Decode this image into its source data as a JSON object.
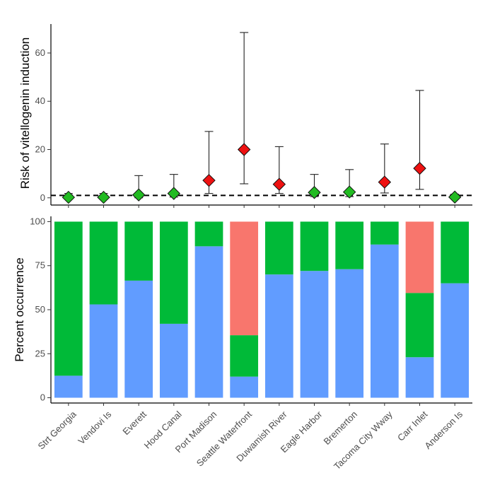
{
  "chart_data": [
    {
      "type": "scatter",
      "title": "",
      "xlabel": "",
      "ylabel": "Risk of vitellogenin induction",
      "ylim": [
        -3,
        72
      ],
      "yticks": [
        0,
        20,
        40,
        60
      ],
      "reference_line": 1,
      "categories": [
        "Strt Georgia",
        "Vendovi Is",
        "Everett",
        "Hood Canal",
        "Port Madison",
        "Seattle Waterfront",
        "Duwamish River",
        "Eagle Harbor",
        "Bremerton",
        "Tacoma City Wway",
        "Carr Inlet",
        "Anderson Is"
      ],
      "values": [
        0.2,
        0.2,
        1.2,
        1.8,
        7.2,
        20.0,
        5.6,
        2.2,
        2.4,
        6.5,
        12.2,
        0.3
      ],
      "lower": [
        0.0,
        0.0,
        0.0,
        0.3,
        1.8,
        5.8,
        1.8,
        0.5,
        0.5,
        2.0,
        3.5,
        0.0
      ],
      "upper": [
        1.8,
        1.8,
        9.2,
        9.7,
        27.5,
        68.5,
        21.2,
        9.7,
        11.7,
        22.3,
        44.5,
        1.5
      ],
      "marker_colors": [
        "#22bb22",
        "#22bb22",
        "#22bb22",
        "#22bb22",
        "#ee1111",
        "#ee1111",
        "#ee1111",
        "#22bb22",
        "#22bb22",
        "#ee1111",
        "#ee1111",
        "#22bb22"
      ]
    },
    {
      "type": "bar",
      "stacked": true,
      "title": "",
      "xlabel": "",
      "ylabel": "Percent occurrence",
      "ylim": [
        -3,
        103
      ],
      "yticks": [
        0,
        25,
        50,
        75,
        100
      ],
      "categories": [
        "Strt Georgia",
        "Vendovi Is",
        "Everett",
        "Hood Canal",
        "Port Madison",
        "Seattle Waterfront",
        "Duwamish River",
        "Eagle Harbor",
        "Bremerton",
        "Tacoma City Wway",
        "Carr Inlet",
        "Anderson Is"
      ],
      "series": [
        {
          "color": "#619cff",
          "values": [
            12.5,
            53,
            66.5,
            42,
            86,
            12,
            70,
            72,
            73,
            87,
            23,
            65
          ]
        },
        {
          "color": "#00ba38",
          "values": [
            87.5,
            47,
            33.5,
            58,
            14,
            23.5,
            30,
            28,
            27,
            13,
            36.5,
            35
          ]
        },
        {
          "color": "#f8766d",
          "values": [
            0,
            0,
            0,
            0,
            0,
            64.5,
            0,
            0,
            0,
            0,
            40.5,
            0
          ]
        }
      ]
    }
  ]
}
